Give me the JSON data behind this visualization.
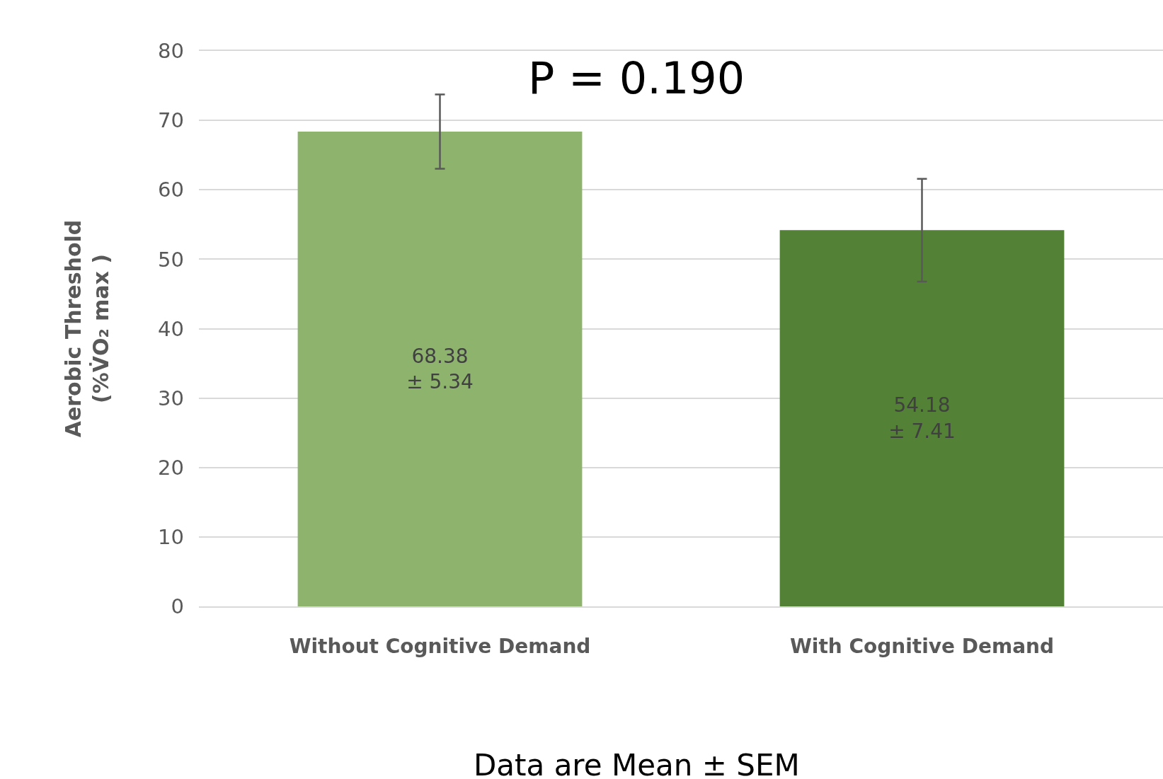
{
  "chart_data": {
    "type": "bar",
    "categories": [
      "Without Cognitive Demand",
      "With Cognitive Demand"
    ],
    "values": [
      68.38,
      54.18
    ],
    "colors": [
      "#8db36d",
      "#538135"
    ],
    "errors": [
      5.34,
      7.41
    ],
    "value_labels": [
      "68.38\n± 5.34",
      "54.18\n± 7.41"
    ],
    "ylabel": "Aerobic Threshold\n(%V̇O₂ max )",
    "ylim": [
      0,
      80
    ],
    "yticks": [
      0,
      10,
      20,
      30,
      40,
      50,
      60,
      70,
      80
    ],
    "grid": "y",
    "annotations": [
      "P = 0.190",
      "Data are Mean ± SEM"
    ]
  }
}
